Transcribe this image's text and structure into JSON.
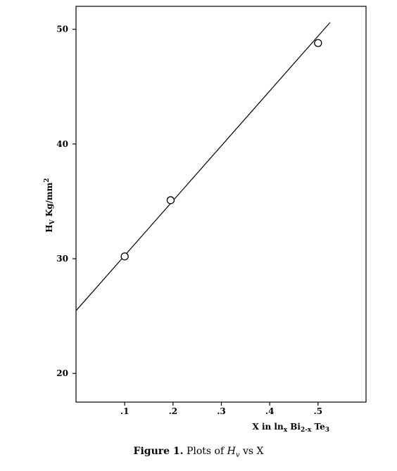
{
  "chart_data": {
    "type": "scatter",
    "title": "",
    "xlabel": {
      "text_pre": "X in ln",
      "sub1": "x",
      "text_mid": " Bi",
      "sub2": "2-x",
      "text_post": " Te",
      "sub3": "3"
    },
    "ylabel": {
      "text_pre": "H",
      "sub": "V",
      "text_post": " Kg/mm",
      "sup": "2"
    },
    "xlim": [
      0,
      0.6
    ],
    "ylim": [
      17.5,
      52
    ],
    "x_ticks": [
      0.1,
      0.2,
      0.3,
      0.4,
      0.5
    ],
    "x_tick_labels": [
      ".1",
      ".2",
      ".3",
      ".4",
      ".5"
    ],
    "y_ticks": [
      20,
      30,
      40,
      50
    ],
    "y_tick_labels": [
      "20",
      "30",
      "40",
      "50"
    ],
    "grid": false,
    "legend": "none",
    "series": [
      {
        "points": [
          {
            "x": 0.1,
            "y": 30.2
          },
          {
            "x": 0.195,
            "y": 35.1
          },
          {
            "x": 0.5,
            "y": 48.8
          }
        ],
        "fit_line": {
          "x_start": 0.0,
          "y_start": 25.5,
          "x_end": 0.525,
          "y_end": 50.6
        }
      }
    ]
  },
  "caption": {
    "figure_label": "Figure 1.",
    "text_pre": "Plots of ",
    "var_main": "H",
    "var_sub": "v",
    "text_post": " vs X"
  }
}
